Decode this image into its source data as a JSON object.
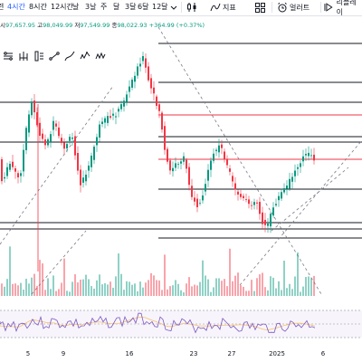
{
  "toolbar": {
    "timeframes": [
      "련",
      "4시간",
      "8시간",
      "12시간",
      "날",
      "3날",
      "주",
      "달",
      "3달",
      "6달",
      "12달"
    ],
    "active_timeframe": "4시간",
    "indicators_label": "지표",
    "alert_label": "얼러트",
    "replay_label": "리플레이"
  },
  "ohlc": {
    "open_label": "시",
    "open": "97,657.95",
    "high_label": "고",
    "high": "98,049.99",
    "low_label": "저",
    "low": "97,549.99",
    "close_label": "종",
    "close": "98,022.93",
    "change": "+364.99 (+0.37%)"
  },
  "drawing_tools": [
    "fib-retracement-icon",
    "pitchfork-icon",
    "long-position-icon",
    "horizontal-ray-icon",
    "brush-icon",
    "elliott-wave-icon",
    "pattern-icon"
  ],
  "x_axis": {
    "labels": [
      "5",
      "9",
      "16",
      "23",
      "27",
      "2025",
      "6"
    ]
  },
  "colors": {
    "up": "#089981",
    "down": "#f23645",
    "accent": "#2962ff",
    "level_line": "#131722",
    "red_line": "#f23645",
    "rsi_line": "#7e57c2",
    "rsi_ma": "#f7c16e"
  }
}
